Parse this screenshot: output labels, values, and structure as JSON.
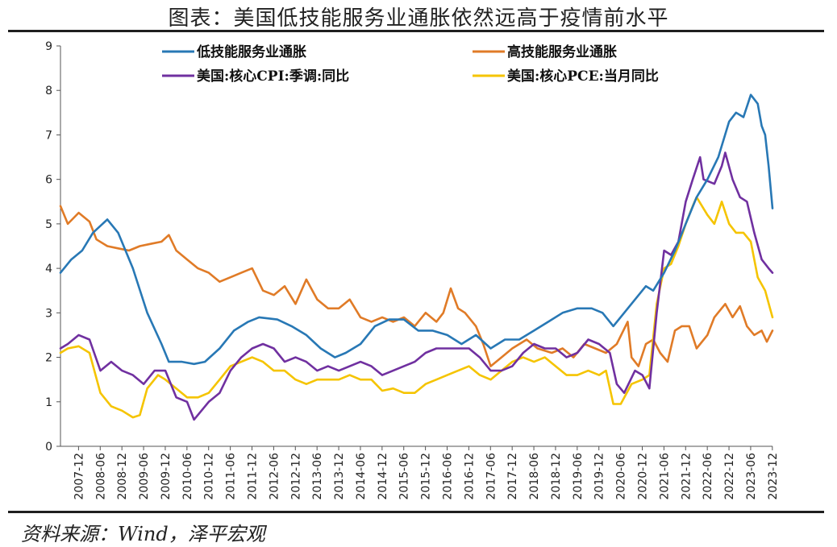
{
  "title": "图表：美国低技能服务业通胀依然远高于疫情前水平",
  "source": "资料来源：Wind，泽平宏观",
  "chart_data": {
    "type": "line",
    "ylim": [
      0,
      9
    ],
    "yticks": [
      0,
      1,
      2,
      3,
      4,
      5,
      6,
      7,
      8,
      9
    ],
    "xlim": [
      2007.5,
      2023.92
    ],
    "xticks": [
      "2007-12",
      "2008-06",
      "2008-12",
      "2009-06",
      "2009-12",
      "2010-06",
      "2010-12",
      "2011-06",
      "2011-12",
      "2012-06",
      "2012-12",
      "2013-06",
      "2013-12",
      "2014-06",
      "2014-12",
      "2015-06",
      "2015-12",
      "2016-06",
      "2016-12",
      "2017-06",
      "2017-12",
      "2018-06",
      "2018-12",
      "2019-06",
      "2019-12",
      "2020-06",
      "2020-12",
      "2021-06",
      "2021-12",
      "2022-06",
      "2022-12",
      "2023-06",
      "2023-12"
    ],
    "legend_placement": "top",
    "grid": false,
    "series": [
      {
        "name": "低技能服务业通胀",
        "color": "#2878b5",
        "points": [
          [
            2007.5,
            3.9
          ],
          [
            2007.75,
            4.2
          ],
          [
            2008.0,
            4.4
          ],
          [
            2008.25,
            4.8
          ],
          [
            2008.58,
            5.1
          ],
          [
            2008.83,
            4.8
          ],
          [
            2009.17,
            4.0
          ],
          [
            2009.5,
            3.0
          ],
          [
            2009.83,
            2.3
          ],
          [
            2010.0,
            1.9
          ],
          [
            2010.3,
            1.9
          ],
          [
            2010.58,
            1.85
          ],
          [
            2010.83,
            1.9
          ],
          [
            2011.17,
            2.2
          ],
          [
            2011.5,
            2.6
          ],
          [
            2011.83,
            2.8
          ],
          [
            2012.08,
            2.9
          ],
          [
            2012.5,
            2.85
          ],
          [
            2012.83,
            2.7
          ],
          [
            2013.17,
            2.5
          ],
          [
            2013.5,
            2.2
          ],
          [
            2013.83,
            2.0
          ],
          [
            2014.08,
            2.1
          ],
          [
            2014.42,
            2.3
          ],
          [
            2014.75,
            2.7
          ],
          [
            2015.08,
            2.85
          ],
          [
            2015.42,
            2.85
          ],
          [
            2015.75,
            2.6
          ],
          [
            2016.08,
            2.6
          ],
          [
            2016.42,
            2.5
          ],
          [
            2016.75,
            2.3
          ],
          [
            2017.08,
            2.5
          ],
          [
            2017.42,
            2.2
          ],
          [
            2017.75,
            2.4
          ],
          [
            2018.08,
            2.4
          ],
          [
            2018.42,
            2.6
          ],
          [
            2018.75,
            2.8
          ],
          [
            2019.08,
            3.0
          ],
          [
            2019.42,
            3.1
          ],
          [
            2019.75,
            3.1
          ],
          [
            2020.0,
            3.0
          ],
          [
            2020.25,
            2.7
          ],
          [
            2020.5,
            3.0
          ],
          [
            2020.75,
            3.3
          ],
          [
            2021.0,
            3.6
          ],
          [
            2021.17,
            3.5
          ],
          [
            2021.42,
            3.9
          ],
          [
            2021.67,
            4.4
          ],
          [
            2021.92,
            5.0
          ],
          [
            2022.17,
            5.6
          ],
          [
            2022.42,
            6.0
          ],
          [
            2022.67,
            6.5
          ],
          [
            2022.92,
            7.3
          ],
          [
            2023.08,
            7.5
          ],
          [
            2023.25,
            7.4
          ],
          [
            2023.42,
            7.9
          ],
          [
            2023.58,
            7.7
          ],
          [
            2023.67,
            7.2
          ],
          [
            2023.75,
            7.0
          ],
          [
            2023.83,
            6.3
          ],
          [
            2023.92,
            5.35
          ]
        ]
      },
      {
        "name": "高技能服务业通胀",
        "color": "#e07b27",
        "points": [
          [
            2007.5,
            5.4
          ],
          [
            2007.67,
            5.0
          ],
          [
            2007.92,
            5.25
          ],
          [
            2008.17,
            5.05
          ],
          [
            2008.33,
            4.65
          ],
          [
            2008.58,
            4.5
          ],
          [
            2008.83,
            4.45
          ],
          [
            2009.08,
            4.4
          ],
          [
            2009.33,
            4.5
          ],
          [
            2009.58,
            4.55
          ],
          [
            2009.83,
            4.6
          ],
          [
            2010.0,
            4.75
          ],
          [
            2010.17,
            4.4
          ],
          [
            2010.42,
            4.2
          ],
          [
            2010.67,
            4.0
          ],
          [
            2010.92,
            3.9
          ],
          [
            2011.17,
            3.7
          ],
          [
            2011.42,
            3.8
          ],
          [
            2011.67,
            3.9
          ],
          [
            2011.92,
            4.0
          ],
          [
            2012.17,
            3.5
          ],
          [
            2012.42,
            3.4
          ],
          [
            2012.67,
            3.6
          ],
          [
            2012.92,
            3.2
          ],
          [
            2013.17,
            3.75
          ],
          [
            2013.42,
            3.3
          ],
          [
            2013.67,
            3.1
          ],
          [
            2013.92,
            3.1
          ],
          [
            2014.17,
            3.3
          ],
          [
            2014.42,
            2.9
          ],
          [
            2014.67,
            2.8
          ],
          [
            2014.92,
            2.9
          ],
          [
            2015.17,
            2.8
          ],
          [
            2015.42,
            2.9
          ],
          [
            2015.67,
            2.7
          ],
          [
            2015.92,
            3.0
          ],
          [
            2016.17,
            2.8
          ],
          [
            2016.33,
            3.0
          ],
          [
            2016.5,
            3.55
          ],
          [
            2016.67,
            3.1
          ],
          [
            2016.83,
            3.0
          ],
          [
            2017.08,
            2.7
          ],
          [
            2017.25,
            2.3
          ],
          [
            2017.42,
            1.8
          ],
          [
            2017.67,
            2.0
          ],
          [
            2017.92,
            2.2
          ],
          [
            2018.25,
            2.4
          ],
          [
            2018.5,
            2.2
          ],
          [
            2018.83,
            2.1
          ],
          [
            2019.08,
            2.2
          ],
          [
            2019.33,
            2.0
          ],
          [
            2019.58,
            2.3
          ],
          [
            2019.83,
            2.2
          ],
          [
            2020.08,
            2.1
          ],
          [
            2020.33,
            2.3
          ],
          [
            2020.58,
            2.8
          ],
          [
            2020.67,
            2.0
          ],
          [
            2020.83,
            1.8
          ],
          [
            2021.0,
            2.3
          ],
          [
            2021.17,
            2.4
          ],
          [
            2021.33,
            2.1
          ],
          [
            2021.5,
            1.9
          ],
          [
            2021.67,
            2.6
          ],
          [
            2021.83,
            2.7
          ],
          [
            2022.0,
            2.7
          ],
          [
            2022.17,
            2.2
          ],
          [
            2022.42,
            2.5
          ],
          [
            2022.58,
            2.9
          ],
          [
            2022.83,
            3.2
          ],
          [
            2023.0,
            2.9
          ],
          [
            2023.17,
            3.15
          ],
          [
            2023.33,
            2.7
          ],
          [
            2023.5,
            2.5
          ],
          [
            2023.67,
            2.6
          ],
          [
            2023.79,
            2.35
          ],
          [
            2023.92,
            2.6
          ]
        ]
      },
      {
        "name": "美国:核心CPI:季调:同比",
        "color": "#7030a0",
        "points": [
          [
            2007.5,
            2.2
          ],
          [
            2007.67,
            2.3
          ],
          [
            2007.92,
            2.5
          ],
          [
            2008.17,
            2.4
          ],
          [
            2008.42,
            1.7
          ],
          [
            2008.67,
            1.9
          ],
          [
            2008.92,
            1.7
          ],
          [
            2009.17,
            1.6
          ],
          [
            2009.42,
            1.4
          ],
          [
            2009.67,
            1.7
          ],
          [
            2009.92,
            1.7
          ],
          [
            2010.17,
            1.1
          ],
          [
            2010.42,
            1.0
          ],
          [
            2010.58,
            0.6
          ],
          [
            2010.75,
            0.8
          ],
          [
            2010.92,
            1.0
          ],
          [
            2011.17,
            1.2
          ],
          [
            2011.42,
            1.7
          ],
          [
            2011.67,
            2.0
          ],
          [
            2011.92,
            2.2
          ],
          [
            2012.17,
            2.3
          ],
          [
            2012.42,
            2.2
          ],
          [
            2012.67,
            1.9
          ],
          [
            2012.92,
            2.0
          ],
          [
            2013.17,
            1.9
          ],
          [
            2013.42,
            1.7
          ],
          [
            2013.67,
            1.8
          ],
          [
            2013.92,
            1.7
          ],
          [
            2014.17,
            1.8
          ],
          [
            2014.42,
            1.9
          ],
          [
            2014.67,
            1.8
          ],
          [
            2014.92,
            1.6
          ],
          [
            2015.17,
            1.7
          ],
          [
            2015.42,
            1.8
          ],
          [
            2015.67,
            1.9
          ],
          [
            2015.92,
            2.1
          ],
          [
            2016.17,
            2.2
          ],
          [
            2016.42,
            2.2
          ],
          [
            2016.67,
            2.2
          ],
          [
            2016.92,
            2.2
          ],
          [
            2017.17,
            2.0
          ],
          [
            2017.42,
            1.7
          ],
          [
            2017.67,
            1.7
          ],
          [
            2017.92,
            1.8
          ],
          [
            2018.17,
            2.1
          ],
          [
            2018.42,
            2.3
          ],
          [
            2018.67,
            2.2
          ],
          [
            2018.92,
            2.2
          ],
          [
            2019.17,
            2.0
          ],
          [
            2019.42,
            2.1
          ],
          [
            2019.67,
            2.4
          ],
          [
            2019.92,
            2.3
          ],
          [
            2020.17,
            2.1
          ],
          [
            2020.33,
            1.4
          ],
          [
            2020.5,
            1.2
          ],
          [
            2020.75,
            1.7
          ],
          [
            2020.92,
            1.6
          ],
          [
            2021.08,
            1.3
          ],
          [
            2021.25,
            3.0
          ],
          [
            2021.42,
            4.4
          ],
          [
            2021.58,
            4.3
          ],
          [
            2021.75,
            4.6
          ],
          [
            2021.92,
            5.5
          ],
          [
            2022.08,
            6.0
          ],
          [
            2022.25,
            6.5
          ],
          [
            2022.33,
            6.0
          ],
          [
            2022.58,
            5.9
          ],
          [
            2022.75,
            6.3
          ],
          [
            2022.83,
            6.6
          ],
          [
            2023.0,
            6.0
          ],
          [
            2023.17,
            5.6
          ],
          [
            2023.33,
            5.5
          ],
          [
            2023.5,
            4.8
          ],
          [
            2023.67,
            4.2
          ],
          [
            2023.83,
            4.0
          ],
          [
            2023.92,
            3.9
          ]
        ]
      },
      {
        "name": "美国:核心PCE:当月同比",
        "color": "#f5c400",
        "points": [
          [
            2007.5,
            2.1
          ],
          [
            2007.67,
            2.2
          ],
          [
            2007.92,
            2.25
          ],
          [
            2008.17,
            2.1
          ],
          [
            2008.42,
            1.2
          ],
          [
            2008.67,
            0.9
          ],
          [
            2008.92,
            0.8
          ],
          [
            2009.17,
            0.65
          ],
          [
            2009.33,
            0.7
          ],
          [
            2009.5,
            1.3
          ],
          [
            2009.75,
            1.6
          ],
          [
            2009.92,
            1.5
          ],
          [
            2010.17,
            1.3
          ],
          [
            2010.42,
            1.1
          ],
          [
            2010.67,
            1.1
          ],
          [
            2010.92,
            1.2
          ],
          [
            2011.17,
            1.5
          ],
          [
            2011.42,
            1.8
          ],
          [
            2011.67,
            1.9
          ],
          [
            2011.92,
            2.0
          ],
          [
            2012.17,
            1.9
          ],
          [
            2012.42,
            1.7
          ],
          [
            2012.67,
            1.7
          ],
          [
            2012.92,
            1.5
          ],
          [
            2013.17,
            1.4
          ],
          [
            2013.42,
            1.5
          ],
          [
            2013.67,
            1.5
          ],
          [
            2013.92,
            1.5
          ],
          [
            2014.17,
            1.6
          ],
          [
            2014.42,
            1.5
          ],
          [
            2014.67,
            1.5
          ],
          [
            2014.92,
            1.25
          ],
          [
            2015.17,
            1.3
          ],
          [
            2015.42,
            1.2
          ],
          [
            2015.67,
            1.2
          ],
          [
            2015.92,
            1.4
          ],
          [
            2016.17,
            1.5
          ],
          [
            2016.42,
            1.6
          ],
          [
            2016.67,
            1.7
          ],
          [
            2016.92,
            1.8
          ],
          [
            2017.17,
            1.6
          ],
          [
            2017.42,
            1.5
          ],
          [
            2017.67,
            1.7
          ],
          [
            2017.92,
            1.9
          ],
          [
            2018.17,
            2.0
          ],
          [
            2018.42,
            1.9
          ],
          [
            2018.67,
            2.0
          ],
          [
            2018.92,
            1.8
          ],
          [
            2019.17,
            1.6
          ],
          [
            2019.42,
            1.6
          ],
          [
            2019.67,
            1.7
          ],
          [
            2019.92,
            1.6
          ],
          [
            2020.08,
            1.7
          ],
          [
            2020.25,
            0.95
          ],
          [
            2020.42,
            0.95
          ],
          [
            2020.67,
            1.4
          ],
          [
            2020.92,
            1.5
          ],
          [
            2021.08,
            1.6
          ],
          [
            2021.25,
            3.2
          ],
          [
            2021.42,
            4.0
          ],
          [
            2021.58,
            4.1
          ],
          [
            2021.75,
            4.5
          ],
          [
            2021.92,
            5.0
          ],
          [
            2022.08,
            5.4
          ],
          [
            2022.17,
            5.6
          ],
          [
            2022.42,
            5.2
          ],
          [
            2022.58,
            5.0
          ],
          [
            2022.75,
            5.5
          ],
          [
            2022.92,
            5.0
          ],
          [
            2023.08,
            4.8
          ],
          [
            2023.25,
            4.8
          ],
          [
            2023.42,
            4.6
          ],
          [
            2023.58,
            3.8
          ],
          [
            2023.75,
            3.5
          ],
          [
            2023.92,
            2.9
          ]
        ]
      }
    ]
  }
}
